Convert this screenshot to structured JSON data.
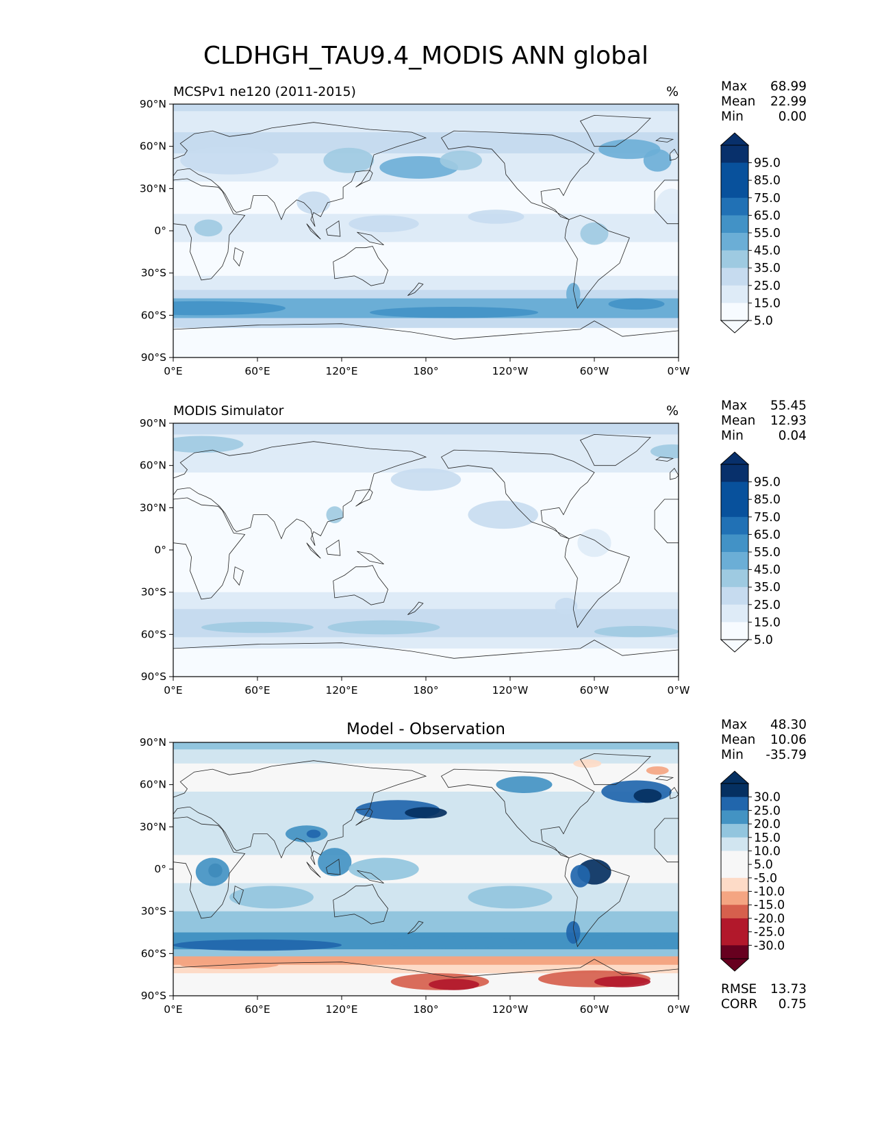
{
  "figure_title": "CLDHGH_TAU9.4_MODIS ANN global",
  "x_ticks": [
    "0°E",
    "60°E",
    "120°E",
    "180°",
    "120°W",
    "60°W",
    "0°W"
  ],
  "y_ticks": [
    "90°N",
    "60°N",
    "30°N",
    "0°",
    "30°S",
    "60°S",
    "90°S"
  ],
  "stat_labels": {
    "max": "Max",
    "mean": "Mean",
    "min": "Min",
    "rmse": "RMSE",
    "corr": "CORR"
  },
  "colors": {
    "blues": [
      "#f7fbff",
      "#deebf7",
      "#c6dbef",
      "#9ecae1",
      "#6baed6",
      "#4292c6",
      "#2171b5",
      "#08519c",
      "#08306b"
    ],
    "diff_scale": [
      "#67001f",
      "#b2182b",
      "#d6604d",
      "#f4a582",
      "#fddbc7",
      "#f7f7f7",
      "#d1e5f0",
      "#92c5de",
      "#4393c3",
      "#2166ac",
      "#053061"
    ]
  },
  "panels": [
    {
      "title": "MCSPv1 ne120 (2011-2015)",
      "units": "%",
      "stats": {
        "max": "68.99",
        "mean": "22.99",
        "min": "0.00"
      },
      "colorbar": {
        "ticks": [
          "95.0",
          "85.0",
          "75.0",
          "65.0",
          "55.0",
          "45.0",
          "35.0",
          "25.0",
          "15.0",
          "5.0"
        ],
        "scale": "blues"
      }
    },
    {
      "title": "MODIS Simulator",
      "units": "%",
      "stats": {
        "max": "55.45",
        "mean": "12.93",
        "min": "0.04"
      },
      "colorbar": {
        "ticks": [
          "95.0",
          "85.0",
          "75.0",
          "65.0",
          "55.0",
          "45.0",
          "35.0",
          "25.0",
          "15.0",
          "5.0"
        ],
        "scale": "blues"
      }
    },
    {
      "title": "Model - Observation",
      "units": "",
      "stats": {
        "max": "48.30",
        "mean": "10.06",
        "min": "-35.79",
        "rmse": "13.73",
        "corr": "0.75"
      },
      "colorbar": {
        "ticks": [
          "30.0",
          "25.0",
          "20.0",
          "15.0",
          "10.0",
          "5.0",
          "-5.0",
          "-10.0",
          "-15.0",
          "-20.0",
          "-25.0",
          "-30.0"
        ],
        "scale": "diff"
      }
    }
  ],
  "chart_data": [
    {
      "type": "heatmap",
      "title": "MCSPv1 ne120 (2011-2015)",
      "units": "%",
      "x": [
        "0°E",
        "60°E",
        "120°E",
        "180°",
        "120°W",
        "60°W",
        "0°W"
      ],
      "y": [
        "90°N",
        "60°N",
        "30°N",
        "0°",
        "30°S",
        "60°S",
        "90°S"
      ],
      "xlim": [
        0,
        360
      ],
      "ylim": [
        -90,
        90
      ],
      "levels": [
        5,
        15,
        25,
        35,
        45,
        55,
        65,
        75,
        85,
        95
      ],
      "stats": {
        "max": 68.99,
        "mean": 22.99,
        "min": 0.0
      }
    },
    {
      "type": "heatmap",
      "title": "MODIS Simulator",
      "units": "%",
      "x": [
        "0°E",
        "60°E",
        "120°E",
        "180°",
        "120°W",
        "60°W",
        "0°W"
      ],
      "y": [
        "90°N",
        "60°N",
        "30°N",
        "0°",
        "30°S",
        "60°S",
        "90°S"
      ],
      "xlim": [
        0,
        360
      ],
      "ylim": [
        -90,
        90
      ],
      "levels": [
        5,
        15,
        25,
        35,
        45,
        55,
        65,
        75,
        85,
        95
      ],
      "stats": {
        "max": 55.45,
        "mean": 12.93,
        "min": 0.04
      }
    },
    {
      "type": "heatmap",
      "title": "Model - Observation",
      "x": [
        "0°E",
        "60°E",
        "120°E",
        "180°",
        "120°W",
        "60°W",
        "0°W"
      ],
      "y": [
        "90°N",
        "60°N",
        "30°N",
        "0°",
        "30°S",
        "60°S",
        "90°S"
      ],
      "xlim": [
        0,
        360
      ],
      "ylim": [
        -90,
        90
      ],
      "levels": [
        -30,
        -25,
        -20,
        -15,
        -10,
        -5,
        5,
        10,
        15,
        20,
        25,
        30
      ],
      "stats": {
        "max": 48.3,
        "mean": 10.06,
        "min": -35.79,
        "rmse": 13.73,
        "corr": 0.75
      }
    }
  ]
}
